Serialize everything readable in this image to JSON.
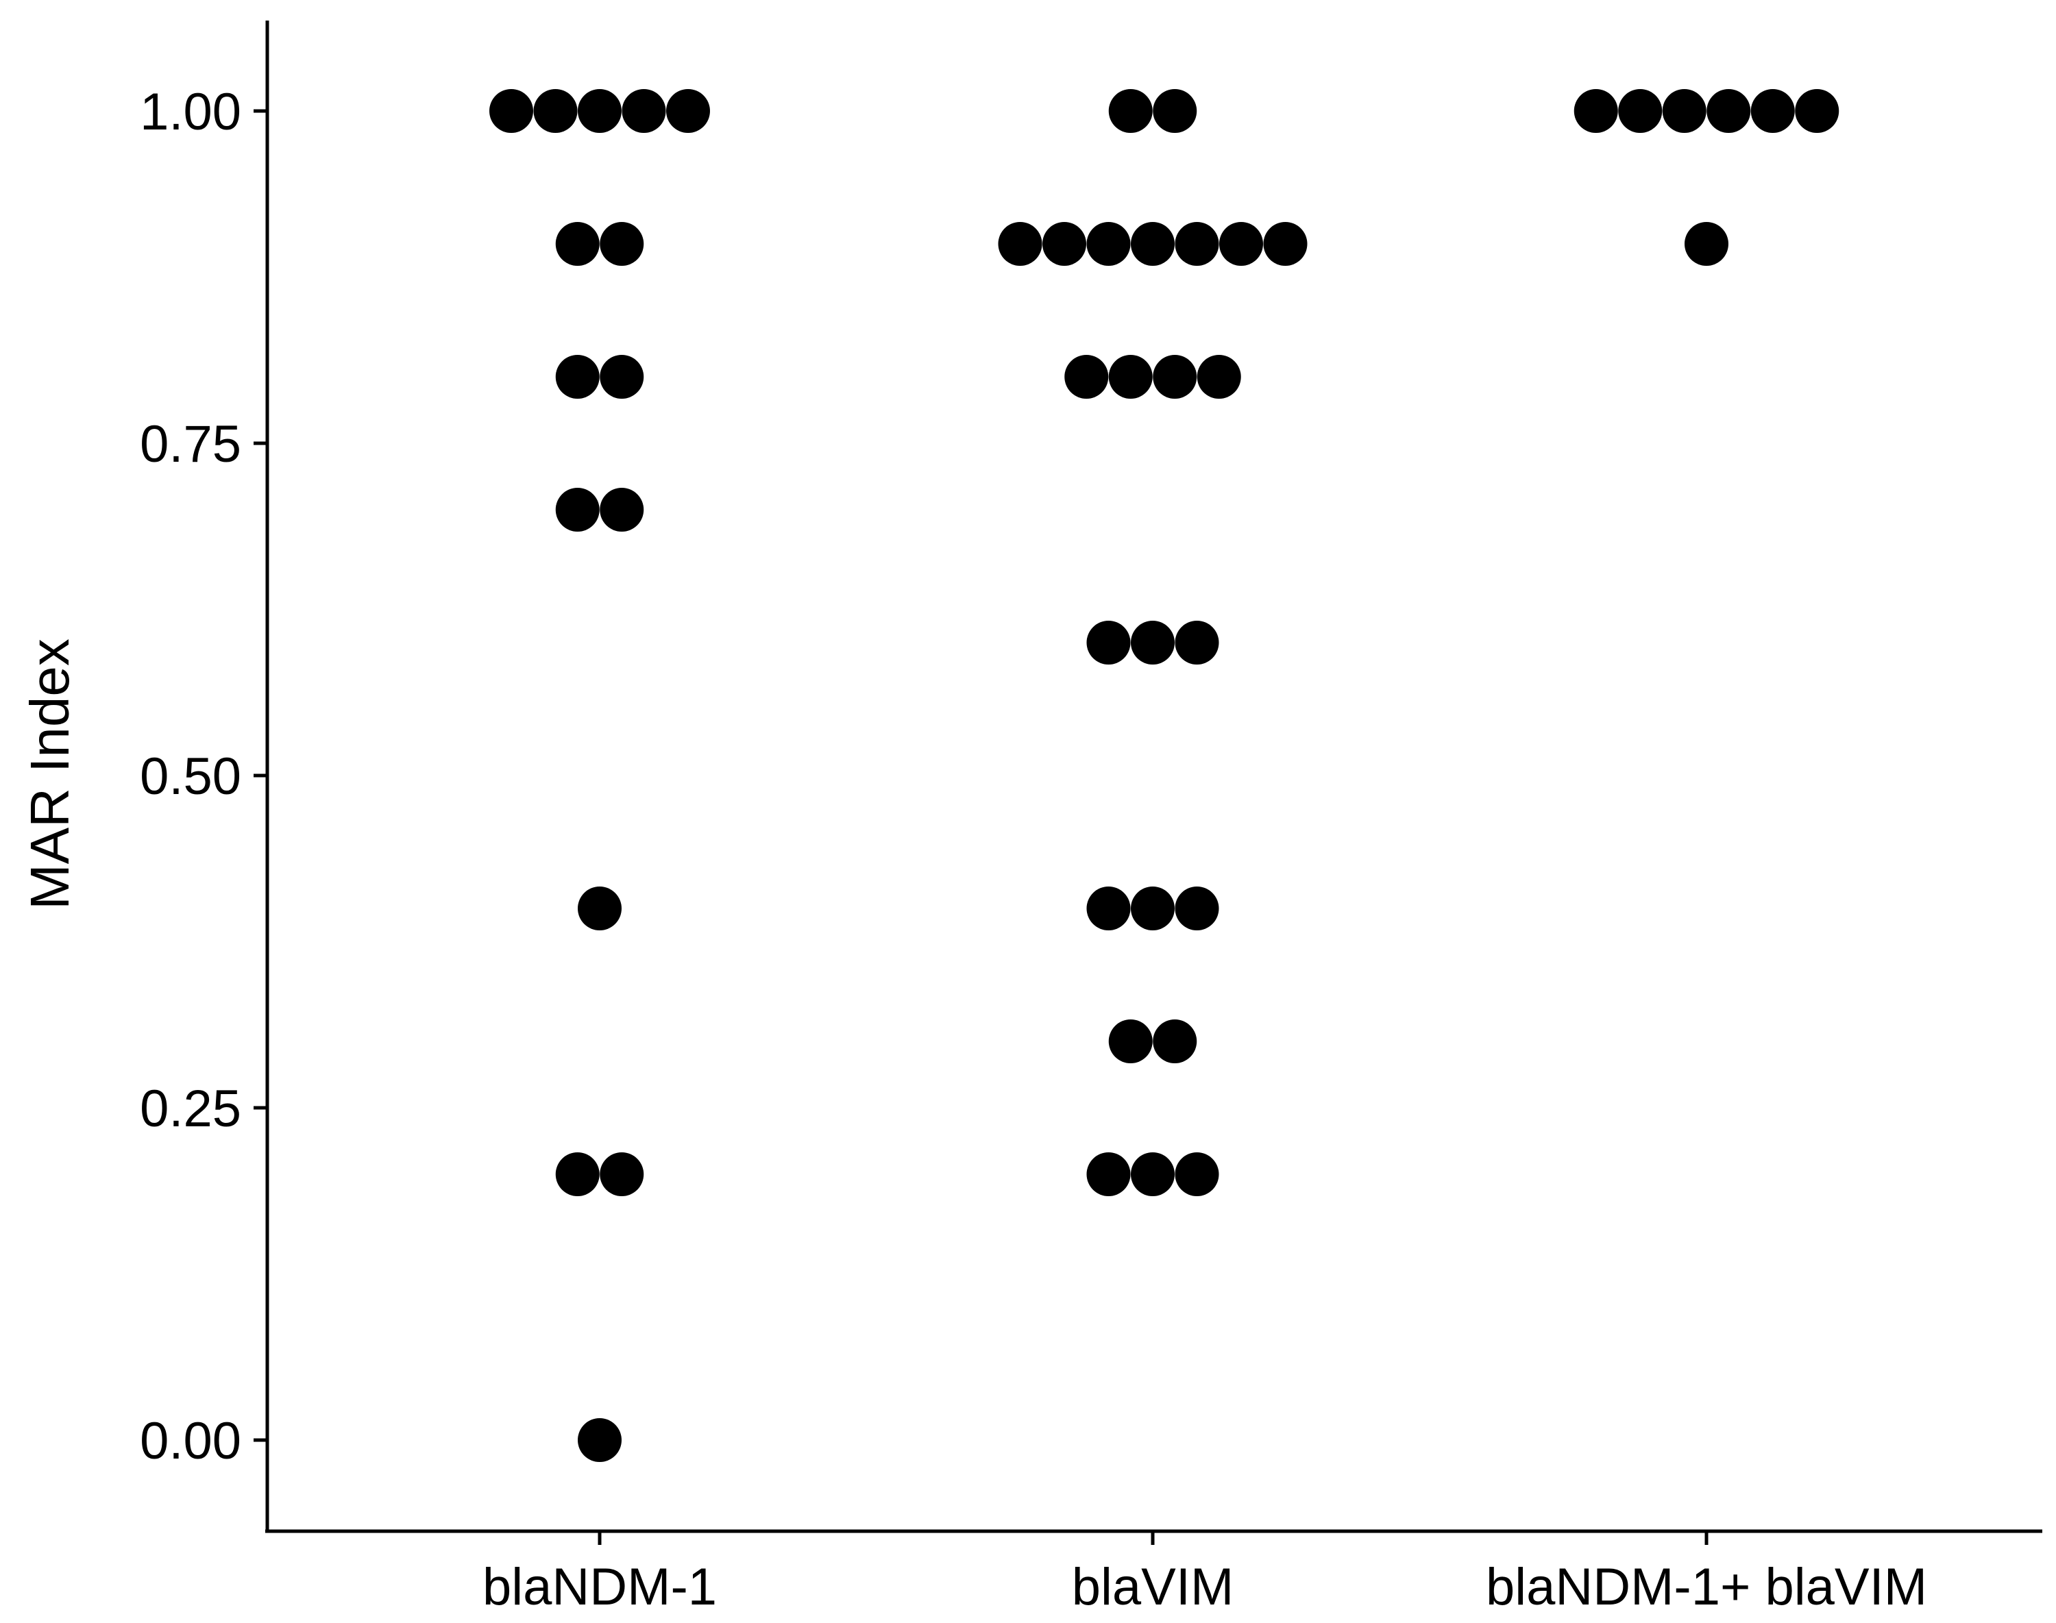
{
  "chart_data": {
    "type": "dotplot",
    "title": "",
    "xlabel": "",
    "ylabel": "MAR Index",
    "ylim": [
      -0.07,
      1.07
    ],
    "yticks": [
      0.0,
      0.25,
      0.5,
      0.75,
      1.0
    ],
    "ytick_labels": [
      "0.00",
      "0.25",
      "0.50",
      "0.75",
      "1.00"
    ],
    "categories": [
      "blaNDM-1",
      "blaVIM",
      "blaNDM-1+ blaVIM"
    ],
    "grid": false,
    "legend": "none",
    "dot_color": "#000000",
    "series": [
      {
        "category": "blaNDM-1",
        "bins": [
          {
            "y": 1.0,
            "count": 5
          },
          {
            "y": 0.9,
            "count": 2
          },
          {
            "y": 0.8,
            "count": 2
          },
          {
            "y": 0.7,
            "count": 2
          },
          {
            "y": 0.4,
            "count": 1
          },
          {
            "y": 0.2,
            "count": 2
          },
          {
            "y": 0.0,
            "count": 1
          }
        ]
      },
      {
        "category": "blaVIM",
        "bins": [
          {
            "y": 1.0,
            "count": 2
          },
          {
            "y": 0.9,
            "count": 7
          },
          {
            "y": 0.8,
            "count": 4
          },
          {
            "y": 0.6,
            "count": 3
          },
          {
            "y": 0.4,
            "count": 3
          },
          {
            "y": 0.3,
            "count": 2
          },
          {
            "y": 0.2,
            "count": 3
          }
        ]
      },
      {
        "category": "blaNDM-1+ blaVIM",
        "bins": [
          {
            "y": 1.0,
            "count": 6
          },
          {
            "y": 0.9,
            "count": 1
          }
        ]
      }
    ]
  }
}
